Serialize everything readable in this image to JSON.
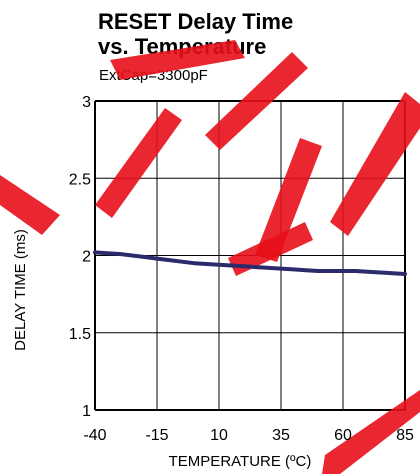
{
  "chart_data": {
    "type": "line",
    "title_line1": "RESET Delay Time",
    "title_line2": "vs. Temperature",
    "subtitle": "ExtCap=3300pF",
    "xlabel": "TEMPERATURE (ºC)",
    "ylabel": "DELAY TIME (ms)",
    "xlim": [
      -40,
      85
    ],
    "ylim": [
      1,
      3
    ],
    "x_ticks": [
      "-40",
      "-15",
      "10",
      "35",
      "60",
      "85"
    ],
    "x_tick_values": [
      -40,
      -15,
      10,
      35,
      60,
      85
    ],
    "y_ticks": [
      "1",
      "1.5",
      "2",
      "2.5",
      "3"
    ],
    "y_tick_values": [
      1,
      1.5,
      2,
      2.5,
      3
    ],
    "grid": true,
    "series": [
      {
        "x": [
          -40,
          -35,
          -30,
          -25,
          -20,
          -15,
          -10,
          -5,
          0,
          5,
          10,
          15,
          20,
          25,
          30,
          35,
          40,
          45,
          50,
          55,
          60,
          65,
          70,
          75,
          80,
          85
        ],
        "y": [
          2.02,
          2.015,
          2.01,
          2.0,
          1.99,
          1.98,
          1.97,
          1.96,
          1.95,
          1.945,
          1.94,
          1.935,
          1.93,
          1.925,
          1.92,
          1.915,
          1.91,
          1.905,
          1.9,
          1.9,
          1.9,
          1.9,
          1.895,
          1.89,
          1.885,
          1.88
        ]
      }
    ]
  },
  "colors": {
    "line": "#2b2a6b",
    "grid": "#000000",
    "watermark": "#e8101a"
  },
  "watermark": "NOT RECOMMENDED FOR NEW DESIGNS"
}
